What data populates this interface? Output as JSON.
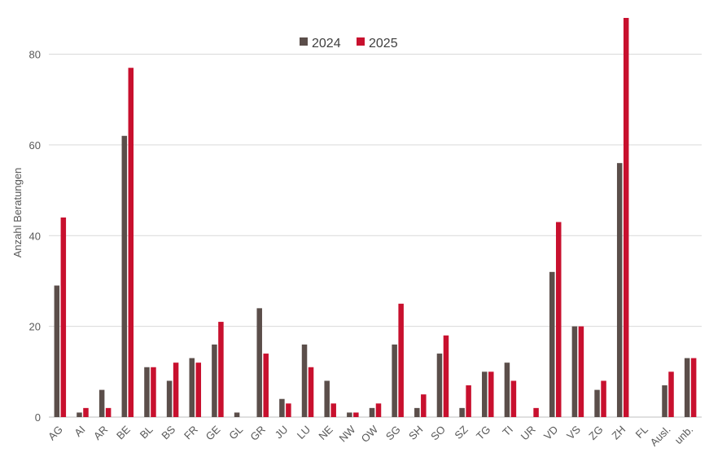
{
  "chart_data": {
    "type": "bar",
    "ylabel": "Anzahl Beratungen",
    "ylim": [
      0,
      88
    ],
    "yticks": [
      0,
      20,
      40,
      60,
      80
    ],
    "grid": true,
    "legend_position": "top-center",
    "categories": [
      "AG",
      "AI",
      "AR",
      "BE",
      "BL",
      "BS",
      "FR",
      "GE",
      "GL",
      "GR",
      "JU",
      "LU",
      "NE",
      "NW",
      "OW",
      "SG",
      "SH",
      "SO",
      "SZ",
      "TG",
      "TI",
      "UR",
      "VD",
      "VS",
      "ZG",
      "ZH",
      "FL",
      "Ausl.",
      "unb."
    ],
    "series": [
      {
        "name": "2024",
        "color": "#5b4e4a",
        "values": [
          29,
          1,
          6,
          62,
          11,
          8,
          13,
          16,
          1,
          24,
          4,
          16,
          8,
          1,
          2,
          16,
          2,
          14,
          2,
          10,
          12,
          0,
          32,
          20,
          6,
          56,
          0,
          7,
          13
        ]
      },
      {
        "name": "2025",
        "color": "#c8102e",
        "values": [
          44,
          2,
          2,
          77,
          11,
          12,
          12,
          21,
          0,
          14,
          3,
          11,
          3,
          1,
          3,
          25,
          5,
          18,
          7,
          10,
          8,
          2,
          43,
          20,
          8,
          88,
          0,
          10,
          13
        ]
      }
    ]
  }
}
